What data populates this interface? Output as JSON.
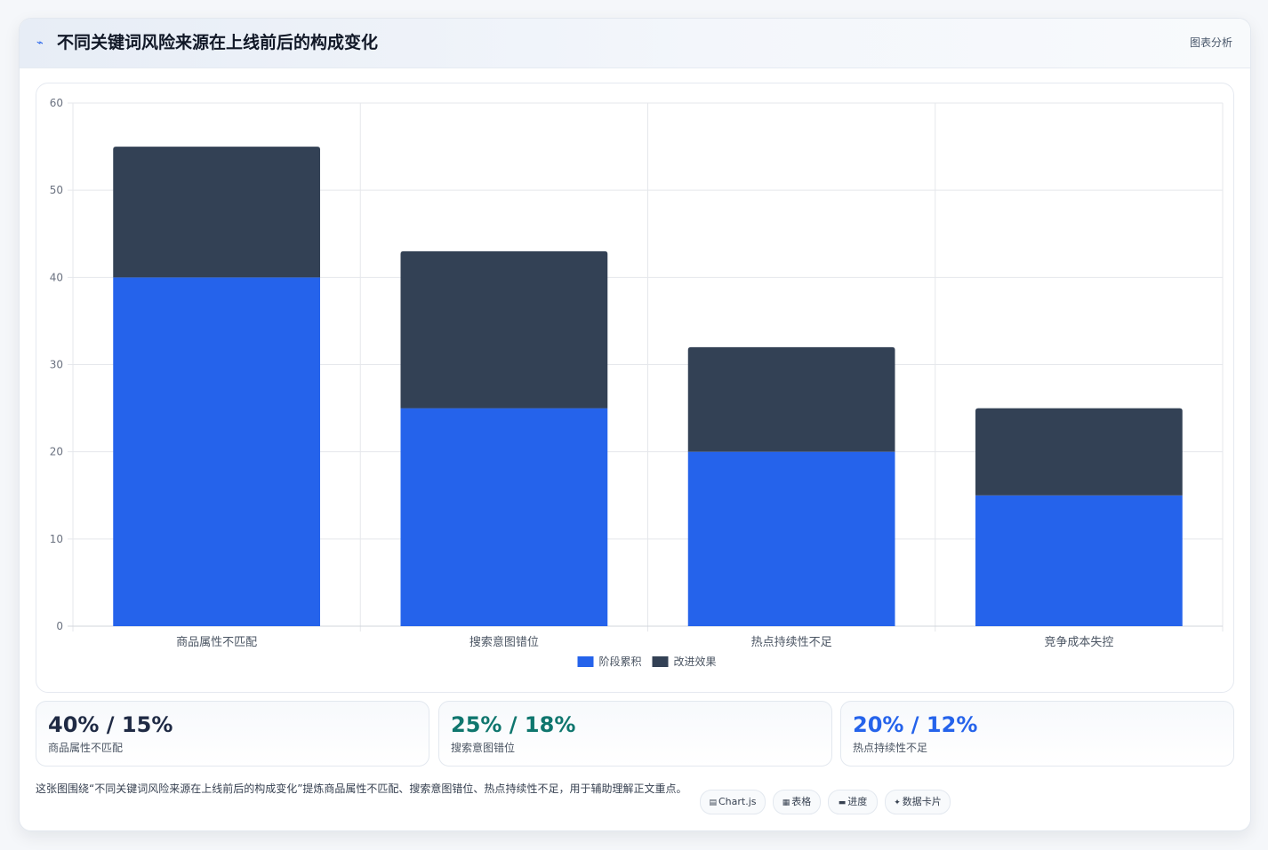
{
  "header": {
    "icon": "lightning-icon",
    "title": "不同关键词风险来源在上线前后的构成变化",
    "tag": "图表分析"
  },
  "chart_data": {
    "type": "bar",
    "stacked": true,
    "categories": [
      "商品属性不匹配",
      "搜索意图错位",
      "热点持续性不足",
      "竞争成本失控"
    ],
    "series": [
      {
        "name": "阶段累积",
        "color": "#2563eb",
        "values": [
          40,
          25,
          20,
          15
        ]
      },
      {
        "name": "改进效果",
        "color": "#334155",
        "values": [
          15,
          18,
          12,
          10
        ]
      }
    ],
    "ylim": [
      0,
      60
    ],
    "yticks": [
      0,
      10,
      20,
      30,
      40,
      50,
      60
    ],
    "grid": true,
    "legend": "bottom"
  },
  "stats": [
    {
      "value": "40% / 15%",
      "label": "商品属性不匹配",
      "color": "#1f2a44"
    },
    {
      "value": "25% / 18%",
      "label": "搜索意图错位",
      "color": "#0f766e"
    },
    {
      "value": "20% / 12%",
      "label": "热点持续性不足",
      "color": "#2563eb"
    }
  ],
  "footnote": "这张图围绕“不同关键词风险来源在上线前后的构成变化”提炼商品属性不匹配、搜索意图错位、热点持续性不足，用于辅助理解正文重点。",
  "chips": [
    {
      "icon": "chart-icon",
      "glyph": "▤",
      "label": "Chart.js"
    },
    {
      "icon": "table-icon",
      "glyph": "▦",
      "label": "表格"
    },
    {
      "icon": "progress-icon",
      "glyph": "▬",
      "label": "进度"
    },
    {
      "icon": "sparkle-icon",
      "glyph": "✦",
      "label": "数据卡片"
    }
  ]
}
